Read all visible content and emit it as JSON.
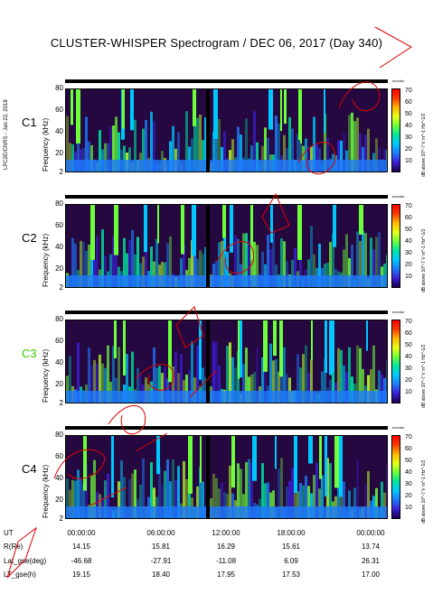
{
  "title": "CLUSTER-WHISPER Spectrogram / DEC 06, 2017 (Day 340)",
  "side_label": "LPC2E/CNRS - Jan 22, 2018",
  "status_label": "monitor",
  "colorbar": {
    "ticks": [
      "70",
      "60",
      "50",
      "40",
      "30",
      "20",
      "10"
    ],
    "label": "dB above 10^-7 V m^-1 Hz^-1/2"
  },
  "colors": {
    "background": "#2a0a4a",
    "accent_green": "#3ccf00"
  },
  "chart_data": [
    {
      "type": "heatmap",
      "satellite": "C1",
      "satellite_color": "#000000",
      "xlabel": "",
      "ylabel": "Frequency (kHz)",
      "y_ticks": [
        "80",
        "60",
        "40",
        "20",
        "2"
      ],
      "ylim": [
        2,
        80
      ],
      "xlim": [
        "00:00:00",
        "24:00:00"
      ],
      "color_range_db": [
        5,
        70
      ]
    },
    {
      "type": "heatmap",
      "satellite": "C2",
      "satellite_color": "#000000",
      "xlabel": "",
      "ylabel": "Frequency (kHz)",
      "y_ticks": [
        "80",
        "60",
        "40",
        "20",
        "2"
      ],
      "ylim": [
        2,
        80
      ],
      "xlim": [
        "00:00:00",
        "24:00:00"
      ],
      "color_range_db": [
        5,
        70
      ]
    },
    {
      "type": "heatmap",
      "satellite": "C3",
      "satellite_color": "#3ccf00",
      "xlabel": "",
      "ylabel": "Frequency (kHz)",
      "y_ticks": [
        "80",
        "60",
        "40",
        "20",
        "2"
      ],
      "ylim": [
        2,
        80
      ],
      "xlim": [
        "00:00:00",
        "24:00:00"
      ],
      "color_range_db": [
        5,
        70
      ]
    },
    {
      "type": "heatmap",
      "satellite": "C4",
      "satellite_color": "#000000",
      "xlabel": "",
      "ylabel": "Frequency (kHz)",
      "y_ticks": [
        "80",
        "60",
        "40",
        "20",
        "2"
      ],
      "ylim": [
        2,
        80
      ],
      "xlim": [
        "00:00:00",
        "24:00:00"
      ],
      "color_range_db": [
        5,
        70
      ]
    }
  ],
  "x_ticks": [
    "00:00:00",
    "06:00:00",
    "12:00:00",
    "18:00:00",
    "00:00:00"
  ],
  "ephemeris": [
    {
      "label": "UT",
      "values": [
        "00:00:00",
        "06:00:00",
        "12:00:00",
        "18:00:00",
        "00:00:00"
      ]
    },
    {
      "label": "R(Re)",
      "values": [
        "14.15",
        "15.81",
        "16.29",
        "15.61",
        "13.74"
      ]
    },
    {
      "label": "Lat_gse(deg)",
      "values": [
        "-46.68",
        "-27.91",
        "-11.08",
        "6.09",
        "26.31"
      ]
    },
    {
      "label": "LT_gse(h)",
      "values": [
        "19.15",
        "18.40",
        "17.95",
        "17.53",
        "17.00"
      ]
    }
  ]
}
